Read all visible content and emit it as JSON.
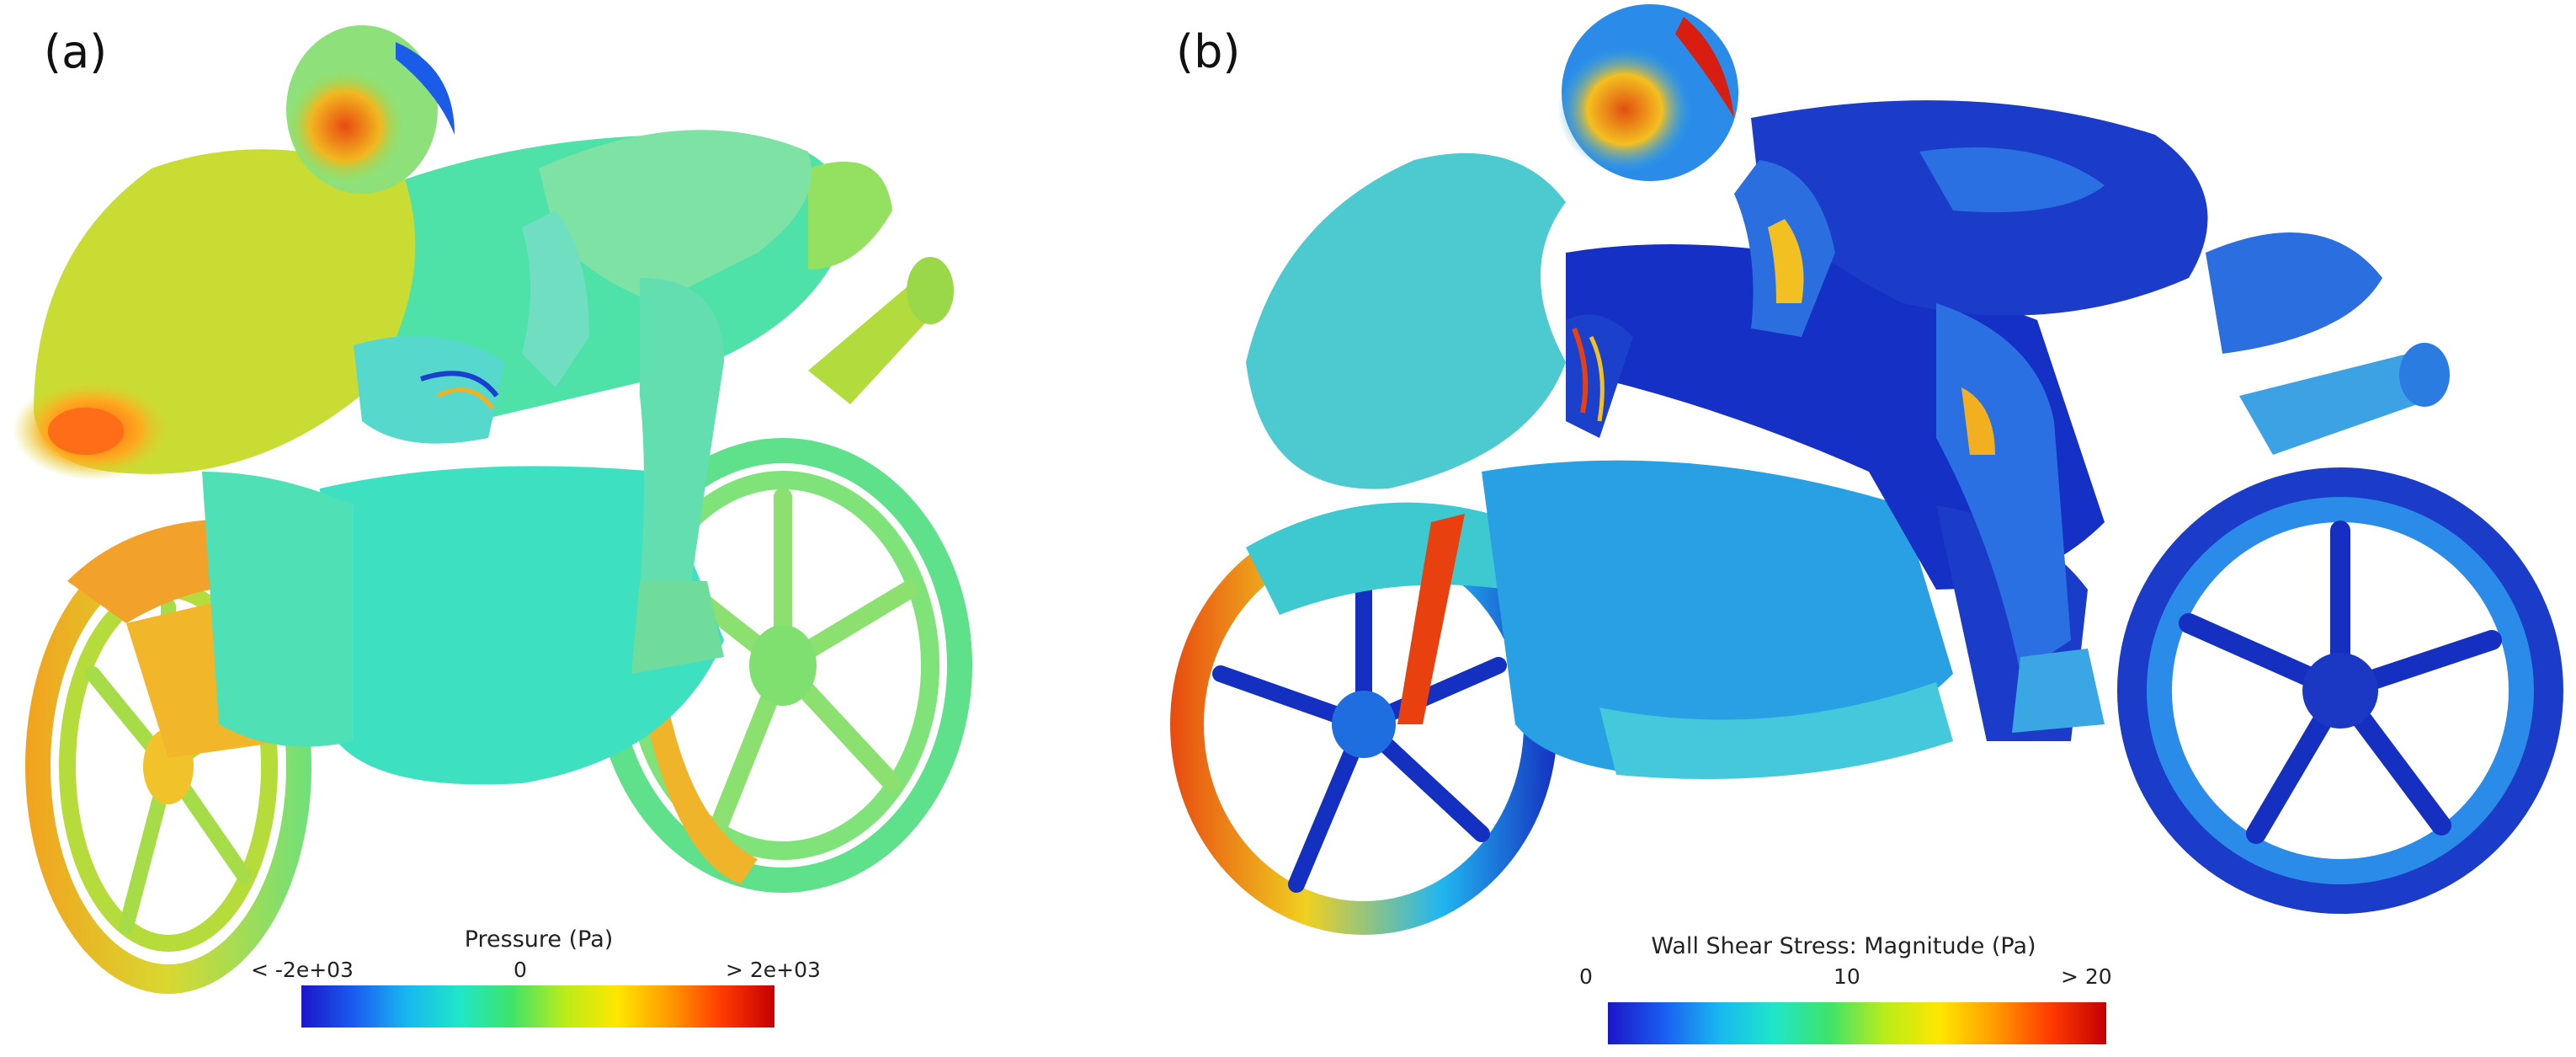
{
  "panels": [
    {
      "label": "(a)",
      "colorbar": {
        "title": "Pressure (Pa)",
        "min_label": "< -2e+03",
        "mid_label": "0",
        "max_label": "> 2e+03",
        "stops": [
          "#1b16c8",
          "#1a5cf0",
          "#19b6f0",
          "#1fe6c8",
          "#3ee36a",
          "#b9ec1a",
          "#ffe600",
          "#ff9a00",
          "#ff3a00",
          "#c40000"
        ]
      }
    },
    {
      "label": "(b)",
      "colorbar": {
        "title": "Wall Shear Stress: Magnitude (Pa)",
        "min_label": "0",
        "mid_label": "10",
        "max_label": "> 20",
        "stops": [
          "#1b16c8",
          "#1a5cf0",
          "#19b6f0",
          "#1fe6c8",
          "#3ee36a",
          "#b9ec1a",
          "#ffe600",
          "#ff9a00",
          "#ff3a00",
          "#c40000"
        ]
      }
    }
  ]
}
